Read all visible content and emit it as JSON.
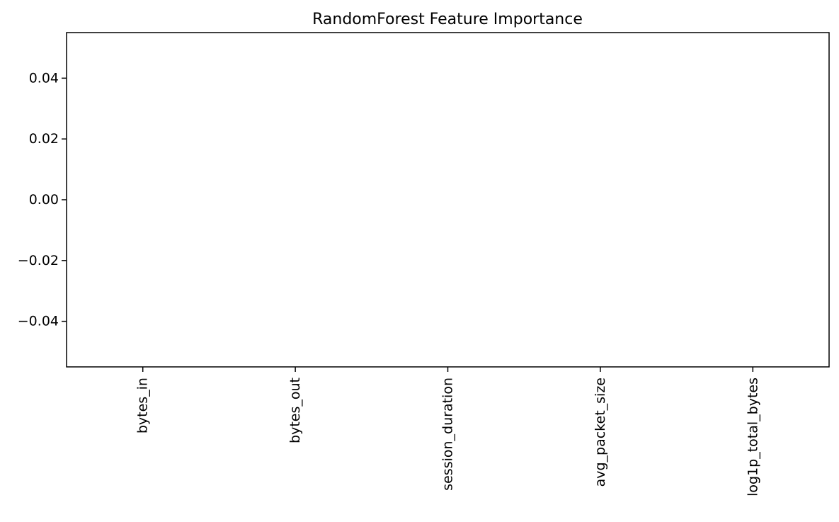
{
  "chart_data": {
    "type": "bar",
    "title": "RandomForest Feature Importance",
    "xlabel": "",
    "ylabel": "",
    "categories": [
      "bytes_in",
      "bytes_out",
      "session_duration",
      "avg_packet_size",
      "log1p_total_bytes"
    ],
    "values": [
      0,
      0,
      0,
      0,
      0
    ],
    "ylim": [
      -0.055,
      0.055
    ],
    "y_ticks": [
      -0.04,
      -0.02,
      0.0,
      0.02,
      0.04
    ],
    "y_tick_labels": [
      "−0.04",
      "−0.02",
      "0.00",
      "0.02",
      "0.04"
    ],
    "x_tick_rotation": "vertical",
    "grid": false,
    "legend": false
  }
}
